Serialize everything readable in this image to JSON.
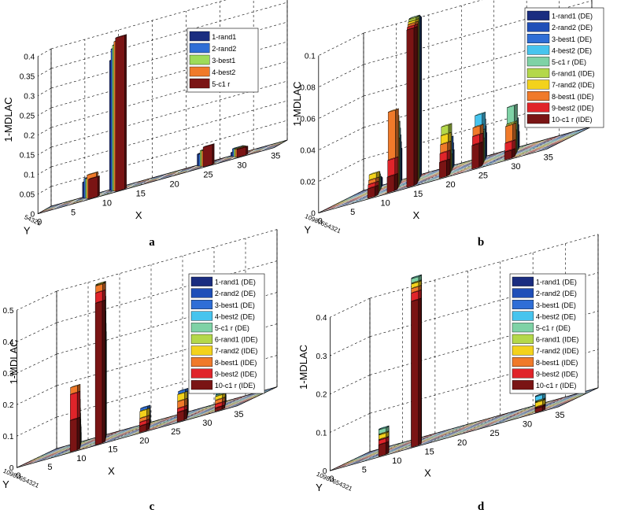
{
  "chart_data": [
    {
      "type": "bar3d",
      "panel_label": "a",
      "ylabel": "1-MDLAC",
      "xlabel": "X",
      "zlabel": "Y",
      "z_ticks": [
        "0",
        "0.05",
        "0.1",
        "0.15",
        "0.2",
        "0.25",
        "0.3",
        "0.35",
        "0.4"
      ],
      "x_ticks": [
        "0",
        "5",
        "10",
        "15",
        "20",
        "25",
        "30",
        "35"
      ],
      "y_tick_text": "54321",
      "zlim": [
        0,
        0.4
      ],
      "xlim": [
        0,
        35
      ],
      "legend": [
        {
          "name": "1-rand1",
          "color": "#1a2d80"
        },
        {
          "name": "2-rand2",
          "color": "#2f6ed6"
        },
        {
          "name": "3-best1",
          "color": "#9ddc5a"
        },
        {
          "name": "4-best2",
          "color": "#f07a2a"
        },
        {
          "name": "5-c1 r",
          "color": "#7a1414"
        }
      ],
      "bars": [
        {
          "x": 5,
          "values": [
            0.04,
            0.05,
            0.05,
            0.06,
            0.05
          ]
        },
        {
          "x": 9,
          "values": [
            0.33,
            0.36,
            0.37,
            0.38,
            0.39
          ]
        },
        {
          "x": 22,
          "values": [
            0.03,
            0.03,
            0.04,
            0.04,
            0.05
          ]
        },
        {
          "x": 27,
          "values": [
            0.01,
            0.02,
            0.02,
            0.02,
            0.02
          ]
        }
      ]
    },
    {
      "type": "bar3d",
      "panel_label": "b",
      "ylabel": "1-MDLAC",
      "xlabel": "X",
      "zlabel": "Y",
      "z_ticks": [
        "0",
        "0.02",
        "0.04",
        "0.06",
        "0.08",
        "0.1"
      ],
      "x_ticks": [
        "0",
        "5",
        "10",
        "15",
        "20",
        "25",
        "30",
        "35"
      ],
      "y_tick_text": "10987654321",
      "zlim": [
        0,
        0.1
      ],
      "xlim": [
        0,
        35
      ],
      "legend": [
        {
          "name": "1-rand1 (DE)",
          "color": "#1a2d80"
        },
        {
          "name": "2-rand2 (DE)",
          "color": "#1f4fb8"
        },
        {
          "name": "3-best1 (DE)",
          "color": "#2f6ed6"
        },
        {
          "name": "4-best2 (DE)",
          "color": "#47c4ee"
        },
        {
          "name": "5-c1 r (DE)",
          "color": "#7fd2a6"
        },
        {
          "name": "6-rand1 (IDE)",
          "color": "#b4d84a"
        },
        {
          "name": "7-rand2 (IDE)",
          "color": "#f3d21c"
        },
        {
          "name": "8-best1 (IDE)",
          "color": "#f07a2a"
        },
        {
          "name": "9-best2 (IDE)",
          "color": "#e0242a"
        },
        {
          "name": "10-c1 r (IDE)",
          "color": "#7a1414"
        }
      ],
      "bars": [
        {
          "x": 2,
          "values": [
            0.005,
            0.006,
            0.007,
            0.008,
            0.01,
            0.012,
            0.013,
            0.01,
            0.008,
            0.006
          ]
        },
        {
          "x": 5,
          "values": [
            0.02,
            0.025,
            0.03,
            0.035,
            0.04,
            0.03,
            0.045,
            0.05,
            0.02,
            0.01
          ]
        },
        {
          "x": 8,
          "values": [
            0.1,
            0.101,
            0.102,
            0.103,
            0.104,
            0.104,
            0.103,
            0.102,
            0.101,
            0.1
          ]
        },
        {
          "x": 13,
          "values": [
            0.01,
            0.015,
            0.02,
            0.012,
            0.01,
            0.03,
            0.025,
            0.02,
            0.015,
            0.01
          ]
        },
        {
          "x": 18,
          "values": [
            0.015,
            0.02,
            0.025,
            0.03,
            0.02,
            0.015,
            0.02,
            0.025,
            0.02,
            0.015
          ]
        },
        {
          "x": 23,
          "values": [
            0.01,
            0.015,
            0.02,
            0.02,
            0.03,
            0.02,
            0.015,
            0.02,
            0.01,
            0.005
          ]
        }
      ]
    },
    {
      "type": "bar3d",
      "panel_label": "c",
      "ylabel": "1-MDLAC",
      "xlabel": "X",
      "zlabel": "Y",
      "z_ticks": [
        "0",
        "0.1",
        "0.2",
        "0.3",
        "0.4",
        "0.5"
      ],
      "x_ticks": [
        "0",
        "5",
        "10",
        "15",
        "20",
        "25",
        "30",
        "35"
      ],
      "y_tick_text": "10987654321",
      "zlim": [
        0,
        0.5
      ],
      "xlim": [
        0,
        35
      ],
      "legend": [
        {
          "name": "1-rand1 (DE)",
          "color": "#1a2d80"
        },
        {
          "name": "2-rand2 (DE)",
          "color": "#1f4fb8"
        },
        {
          "name": "3-best1 (DE)",
          "color": "#2f6ed6"
        },
        {
          "name": "4-best2 (DE)",
          "color": "#47c4ee"
        },
        {
          "name": "5-c1 r (DE)",
          "color": "#7fd2a6"
        },
        {
          "name": "6-rand1 (IDE)",
          "color": "#b4d84a"
        },
        {
          "name": "7-rand2 (IDE)",
          "color": "#f3d21c"
        },
        {
          "name": "8-best1 (IDE)",
          "color": "#f07a2a"
        },
        {
          "name": "9-best2 (IDE)",
          "color": "#e0242a"
        },
        {
          "name": "10-c1 r (IDE)",
          "color": "#7a1414"
        }
      ],
      "bars": [
        {
          "x": 3,
          "values": [
            0.03,
            0.05,
            0.06,
            0.08,
            0.1,
            0.12,
            0.15,
            0.2,
            0.18,
            0.1
          ]
        },
        {
          "x": 7,
          "values": [
            0.3,
            0.33,
            0.36,
            0.4,
            0.45,
            0.5,
            0.5,
            0.5,
            0.48,
            0.45
          ]
        },
        {
          "x": 14,
          "values": [
            0.03,
            0.05,
            0.06,
            0.05,
            0.04,
            0.05,
            0.06,
            0.04,
            0.03,
            0.02
          ]
        },
        {
          "x": 20,
          "values": [
            0.04,
            0.06,
            0.08,
            0.06,
            0.05,
            0.07,
            0.08,
            0.06,
            0.04,
            0.03
          ]
        },
        {
          "x": 26,
          "values": [
            0.02,
            0.03,
            0.04,
            0.05,
            0.04,
            0.03,
            0.04,
            0.03,
            0.02,
            0.01
          ]
        }
      ]
    },
    {
      "type": "bar3d",
      "panel_label": "d",
      "ylabel": "1-MDLAC",
      "xlabel": "X",
      "zlabel": "Y",
      "z_ticks": [
        "0",
        "0.1",
        "0.2",
        "0.3",
        "0.4"
      ],
      "x_ticks": [
        "0",
        "5",
        "10",
        "15",
        "20",
        "25",
        "30",
        "35"
      ],
      "y_tick_text": "10987654321",
      "zlim": [
        0,
        0.4
      ],
      "xlim": [
        0,
        35
      ],
      "legend": [
        {
          "name": "1-rand1 (DE)",
          "color": "#1a2d80"
        },
        {
          "name": "2-rand2 (DE)",
          "color": "#1f4fb8"
        },
        {
          "name": "3-best1 (DE)",
          "color": "#2f6ed6"
        },
        {
          "name": "4-best2 (DE)",
          "color": "#47c4ee"
        },
        {
          "name": "5-c1 r (DE)",
          "color": "#7fd2a6"
        },
        {
          "name": "6-rand1 (IDE)",
          "color": "#b4d84a"
        },
        {
          "name": "7-rand2 (IDE)",
          "color": "#f3d21c"
        },
        {
          "name": "8-best1 (IDE)",
          "color": "#f07a2a"
        },
        {
          "name": "9-best2 (IDE)",
          "color": "#e0242a"
        },
        {
          "name": "10-c1 r (IDE)",
          "color": "#7a1414"
        }
      ],
      "bars": [
        {
          "x": 2,
          "values": [
            0.04,
            0.05,
            0.05,
            0.06,
            0.06,
            0.05,
            0.05,
            0.04,
            0.04,
            0.03
          ]
        },
        {
          "x": 7,
          "values": [
            0.41,
            0.42,
            0.42,
            0.43,
            0.43,
            0.42,
            0.42,
            0.41,
            0.4,
            0.38
          ]
        },
        {
          "x": 26,
          "values": [
            0.02,
            0.02,
            0.03,
            0.03,
            0.02,
            0.02,
            0.02,
            0.01,
            0.01,
            0.01
          ]
        }
      ]
    }
  ]
}
